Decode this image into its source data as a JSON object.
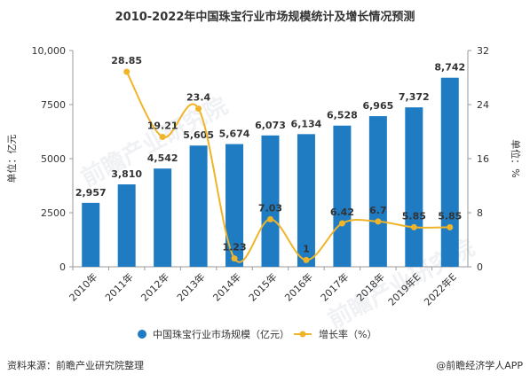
{
  "title": "2010-2022年中国珠宝行业市场规模统计及增长情况预测",
  "footer": {
    "source": "资料来源：前瞻产业研究院整理",
    "credit": "@前瞻经济学人APP"
  },
  "watermarks": [
    "前瞻产业研究院",
    "前瞻产业研究院"
  ],
  "colors": {
    "bar": "#1f7cc2",
    "line": "#f0b429",
    "text": "#333333",
    "axis": "#999999"
  },
  "chart_data": {
    "type": "bar",
    "categories": [
      "2010年",
      "2011年",
      "2012年",
      "2013年",
      "2014年",
      "2015年",
      "2016年",
      "2017年",
      "2018年",
      "2019年E",
      "2022年E"
    ],
    "series": [
      {
        "name": "中国珠宝行业市场规模（亿元）",
        "type": "bar",
        "axis": "left",
        "values": [
          2957,
          3810,
          4542,
          5605,
          5674,
          6073,
          6134,
          6528,
          6965,
          7372,
          8742
        ],
        "labels": [
          "2,957",
          "3,810",
          "4,542",
          "5,605",
          "5,674",
          "6,073",
          "6,134",
          "6,528",
          "6,965",
          "7,372",
          "8,742"
        ]
      },
      {
        "name": "增长率（%）",
        "type": "line",
        "axis": "right",
        "values": [
          null,
          28.85,
          19.21,
          23.4,
          1.23,
          7.03,
          1,
          6.42,
          6.7,
          5.85,
          5.85
        ],
        "labels": [
          "",
          "28.85",
          "19.21",
          "23.4",
          "1.23",
          "7.03",
          "1",
          "6.42",
          "6.7",
          "5.85",
          "5.85"
        ]
      }
    ],
    "left_axis": {
      "label": "单位：亿元",
      "min": 0,
      "max": 10000,
      "ticks": [
        0,
        2500,
        5000,
        7500,
        10000
      ],
      "tick_labels": [
        "0",
        "2500",
        "5000",
        "7500",
        "10,000"
      ]
    },
    "right_axis": {
      "label": "单位：%",
      "min": 0,
      "max": 32,
      "ticks": [
        0,
        8,
        16,
        24,
        32
      ],
      "tick_labels": [
        "0",
        "8",
        "16",
        "24",
        "32"
      ]
    },
    "grid": false,
    "legend_position": "bottom"
  }
}
